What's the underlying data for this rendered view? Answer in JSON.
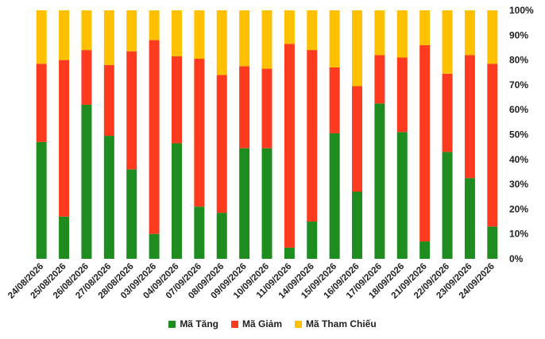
{
  "chart_data": {
    "type": "bar",
    "stacked": true,
    "percent": true,
    "categories": [
      "24/08/2026",
      "25/08/2026",
      "26/08/2026",
      "27/08/2026",
      "28/08/2026",
      "03/09/2026",
      "04/09/2026",
      "07/09/2026",
      "08/09/2026",
      "09/09/2026",
      "10/09/2026",
      "11/09/2026",
      "14/09/2026",
      "15/09/2026",
      "16/09/2026",
      "17/09/2026",
      "18/09/2026",
      "21/09/2026",
      "22/09/2026",
      "23/09/2026",
      "24/09/2026"
    ],
    "series": [
      {
        "name": "Mã Tăng",
        "color": "#1e8c1e",
        "values": [
          47,
          17,
          62,
          49.5,
          36,
          10,
          46.5,
          21,
          18.5,
          44.5,
          44.5,
          4.5,
          15,
          50.5,
          27,
          62.5,
          51,
          7,
          43,
          32.5,
          13
        ]
      },
      {
        "name": "Mã Giảm",
        "color": "#ff3b1f",
        "values": [
          31.5,
          63,
          22,
          28.5,
          47.5,
          78,
          35,
          59.5,
          55.5,
          33,
          32,
          82,
          69,
          26.5,
          42.5,
          19.5,
          30,
          79,
          31.5,
          49.5,
          65.5
        ]
      },
      {
        "name": "Mã Tham Chiếu",
        "color": "#ffc000",
        "values": [
          21.5,
          20,
          16,
          22,
          16.5,
          12,
          18.5,
          19.5,
          26,
          22.5,
          23.5,
          13.5,
          16,
          23,
          30.5,
          18,
          19,
          14,
          25.5,
          18,
          21.5
        ]
      }
    ],
    "ylim": [
      0,
      100
    ],
    "yticks": [
      "0%",
      "10%",
      "20%",
      "30%",
      "40%",
      "50%",
      "60%",
      "70%",
      "80%",
      "90%",
      "100%"
    ],
    "yaxis_position": "right",
    "grid": false,
    "legend": "bottom"
  }
}
